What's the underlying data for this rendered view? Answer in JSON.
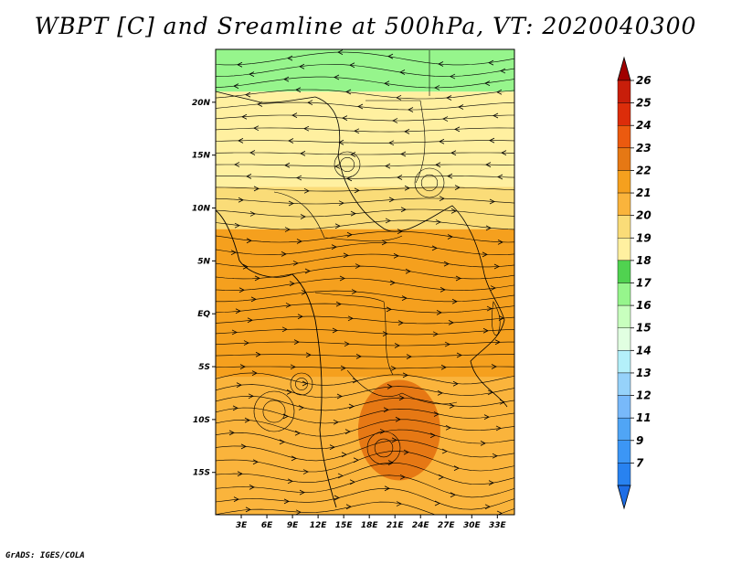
{
  "title": "WBPT [C] and Sreamline at 500hPa, VT: 2020040300",
  "credit": "GrADS: IGES/COLA",
  "chart_data": {
    "type": "heatmap",
    "variable": "wet-bulb potential temperature with streamlines",
    "title": "WBPT [C] and Sreamline at 500hPa, VT: 2020040300",
    "xlabel": "",
    "ylabel": "",
    "xlim": [
      0,
      35
    ],
    "ylim": [
      -19,
      25
    ],
    "x_ticks": [
      {
        "value": 3,
        "label": "3E"
      },
      {
        "value": 6,
        "label": "6E"
      },
      {
        "value": 9,
        "label": "9E"
      },
      {
        "value": 12,
        "label": "12E"
      },
      {
        "value": 15,
        "label": "15E"
      },
      {
        "value": 18,
        "label": "18E"
      },
      {
        "value": 21,
        "label": "21E"
      },
      {
        "value": 24,
        "label": "24E"
      },
      {
        "value": 27,
        "label": "27E"
      },
      {
        "value": 30,
        "label": "30E"
      },
      {
        "value": 33,
        "label": "33E"
      }
    ],
    "y_ticks": [
      {
        "value": 20,
        "label": "20N"
      },
      {
        "value": 15,
        "label": "15N"
      },
      {
        "value": 10,
        "label": "10N"
      },
      {
        "value": 5,
        "label": "5N"
      },
      {
        "value": 0,
        "label": "EQ"
      },
      {
        "value": -5,
        "label": "5S"
      },
      {
        "value": -10,
        "label": "10S"
      },
      {
        "value": -15,
        "label": "15S"
      }
    ],
    "colorbar": {
      "labels": [
        "7",
        "9",
        "11",
        "12",
        "13",
        "14",
        "15",
        "16",
        "17",
        "18",
        "19",
        "20",
        "21",
        "22",
        "23",
        "24",
        "25",
        "26"
      ],
      "colors": [
        "#1e6ee6",
        "#2882f0",
        "#3c96f5",
        "#50a5f5",
        "#78b9fa",
        "#96d2fa",
        "#b4f0fa",
        "#e1ffe1",
        "#c8ffbe",
        "#96f58c",
        "#50d250",
        "#fff0a0",
        "#fadc78",
        "#fab43c",
        "#f5a01e",
        "#e67814",
        "#eb5a0f",
        "#dc2d0a",
        "#c81e0a",
        "#a00000"
      ]
    },
    "field_bands": [
      {
        "lat_range": [
          21,
          25
        ],
        "value": 17
      },
      {
        "lat_range": [
          12,
          21
        ],
        "value": 19.5
      },
      {
        "lat_range": [
          8,
          12
        ],
        "value": 20.5
      },
      {
        "lat_range": [
          -6,
          8
        ],
        "value": 22
      },
      {
        "lat_range": [
          -19,
          -6
        ],
        "value": 21.5
      }
    ],
    "field_max": {
      "lon": 21.5,
      "lat": -11,
      "value": 23.5
    }
  }
}
